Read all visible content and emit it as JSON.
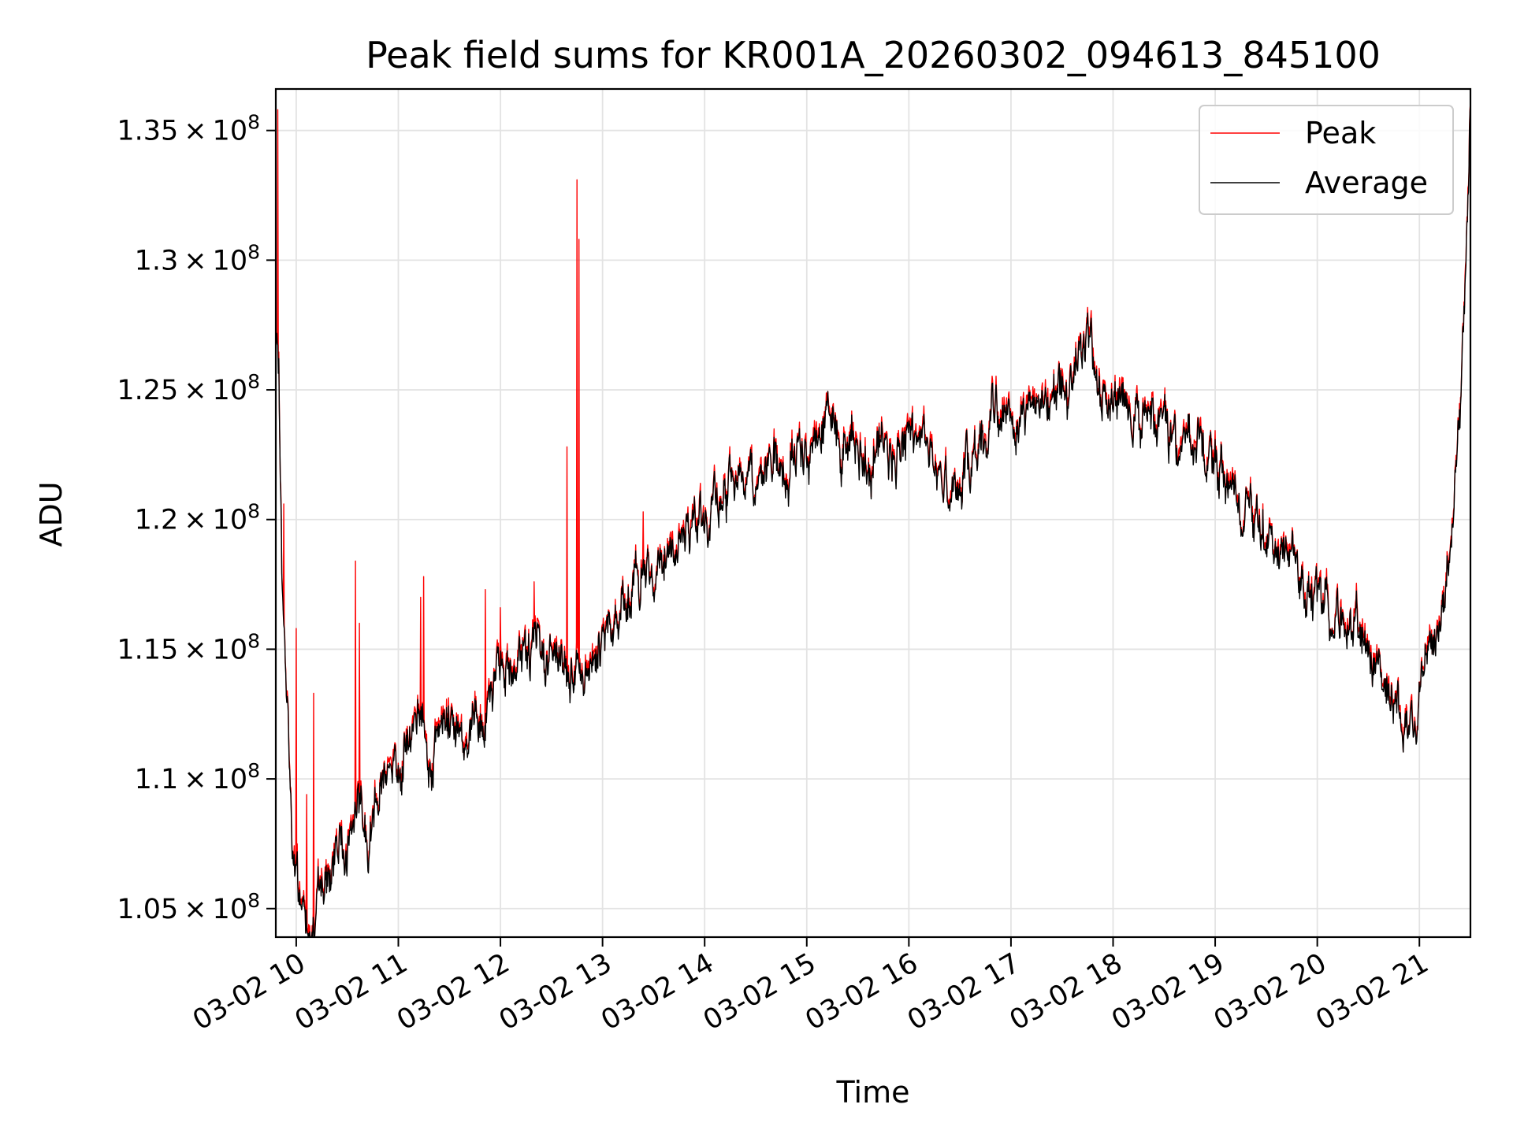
{
  "chart_data": {
    "type": "line",
    "title": "Peak field sums for KR001A_20260302_094613_845100",
    "xlabel": "Time",
    "ylabel": "ADU",
    "xlim_hours": [
      9.8,
      21.5
    ],
    "ylim": [
      103900000,
      136600000
    ],
    "grid": true,
    "legend_location": "upper right",
    "x_ticks": [
      {
        "hour": 10,
        "label": "03-02 10"
      },
      {
        "hour": 11,
        "label": "03-02 11"
      },
      {
        "hour": 12,
        "label": "03-02 12"
      },
      {
        "hour": 13,
        "label": "03-02 13"
      },
      {
        "hour": 14,
        "label": "03-02 14"
      },
      {
        "hour": 15,
        "label": "03-02 15"
      },
      {
        "hour": 16,
        "label": "03-02 16"
      },
      {
        "hour": 17,
        "label": "03-02 17"
      },
      {
        "hour": 18,
        "label": "03-02 18"
      },
      {
        "hour": 19,
        "label": "03-02 19"
      },
      {
        "hour": 20,
        "label": "03-02 20"
      },
      {
        "hour": 21,
        "label": "03-02 21"
      }
    ],
    "y_ticks": [
      {
        "value": 105000000,
        "mantissa": "1.05",
        "exponent": "8"
      },
      {
        "value": 110000000,
        "mantissa": "1.1",
        "exponent": "8"
      },
      {
        "value": 115000000,
        "mantissa": "1.15",
        "exponent": "8"
      },
      {
        "value": 120000000,
        "mantissa": "1.2",
        "exponent": "8"
      },
      {
        "value": 125000000,
        "mantissa": "1.25",
        "exponent": "8"
      },
      {
        "value": 130000000,
        "mantissa": "1.3",
        "exponent": "8"
      },
      {
        "value": 135000000,
        "mantissa": "1.35",
        "exponent": "8"
      }
    ],
    "series": [
      {
        "name": "Peak",
        "color": "#ff0000"
      },
      {
        "name": "Average",
        "color": "#000000"
      }
    ],
    "trend_points": [
      [
        9.8,
        126.5
      ],
      [
        9.83,
        124.8
      ],
      [
        9.86,
        117.5
      ],
      [
        9.9,
        113.0
      ],
      [
        9.93,
        111.0
      ],
      [
        9.96,
        107.5
      ],
      [
        10.0,
        106.0
      ],
      [
        10.05,
        104.9
      ],
      [
        10.1,
        105.3
      ],
      [
        10.15,
        104.2
      ],
      [
        10.25,
        105.6
      ],
      [
        10.35,
        106.7
      ],
      [
        10.45,
        107.6
      ],
      [
        10.55,
        108.3
      ],
      [
        10.6,
        109.8
      ],
      [
        10.7,
        107.4
      ],
      [
        10.8,
        109.6
      ],
      [
        10.9,
        110.8
      ],
      [
        11.0,
        110.6
      ],
      [
        11.1,
        111.8
      ],
      [
        11.2,
        112.4
      ],
      [
        11.3,
        110.5
      ],
      [
        11.4,
        111.6
      ],
      [
        11.5,
        112.3
      ],
      [
        11.6,
        112.5
      ],
      [
        11.7,
        112.0
      ],
      [
        11.8,
        111.2
      ],
      [
        11.9,
        113.0
      ],
      [
        12.0,
        114.3
      ],
      [
        12.2,
        114.6
      ],
      [
        12.4,
        115.0
      ],
      [
        12.6,
        114.5
      ],
      [
        12.8,
        114.0
      ],
      [
        13.0,
        115.5
      ],
      [
        13.2,
        116.8
      ],
      [
        13.4,
        117.6
      ],
      [
        13.6,
        118.5
      ],
      [
        13.8,
        119.3
      ],
      [
        14.0,
        120.0
      ],
      [
        14.2,
        120.8
      ],
      [
        14.4,
        121.5
      ],
      [
        14.6,
        121.4
      ],
      [
        14.8,
        122.2
      ],
      [
        15.0,
        122.8
      ],
      [
        15.2,
        123.8
      ],
      [
        15.4,
        123.1
      ],
      [
        15.6,
        122.6
      ],
      [
        15.8,
        122.4
      ],
      [
        16.0,
        123.3
      ],
      [
        16.2,
        122.3
      ],
      [
        16.4,
        121.3
      ],
      [
        16.6,
        122.0
      ],
      [
        16.8,
        123.8
      ],
      [
        17.0,
        124.6
      ],
      [
        17.2,
        124.3
      ],
      [
        17.4,
        124.9
      ],
      [
        17.6,
        125.4
      ],
      [
        17.75,
        127.5
      ],
      [
        17.85,
        125.3
      ],
      [
        18.0,
        124.6
      ],
      [
        18.2,
        123.9
      ],
      [
        18.4,
        123.8
      ],
      [
        18.6,
        123.1
      ],
      [
        18.8,
        122.8
      ],
      [
        19.0,
        121.8
      ],
      [
        19.2,
        120.8
      ],
      [
        19.4,
        119.8
      ],
      [
        19.6,
        118.6
      ],
      [
        19.8,
        118.0
      ],
      [
        20.0,
        117.3
      ],
      [
        20.2,
        116.5
      ],
      [
        20.4,
        115.6
      ],
      [
        20.6,
        114.2
      ],
      [
        20.75,
        113.2
      ],
      [
        20.85,
        112.3
      ],
      [
        20.95,
        113.0
      ],
      [
        21.05,
        113.8
      ],
      [
        21.15,
        114.2
      ],
      [
        21.2,
        115.8
      ],
      [
        21.3,
        118.5
      ],
      [
        21.4,
        124.5
      ],
      [
        21.45,
        129.5
      ],
      [
        21.5,
        135.5
      ]
    ],
    "peak_spikes": [
      [
        9.82,
        135.8
      ],
      [
        9.88,
        120.6
      ],
      [
        10.0,
        115.8
      ],
      [
        10.1,
        109.4
      ],
      [
        10.17,
        113.3
      ],
      [
        10.58,
        118.4
      ],
      [
        10.62,
        116.0
      ],
      [
        11.22,
        117.0
      ],
      [
        11.25,
        117.8
      ],
      [
        11.85,
        117.3
      ],
      [
        12.0,
        116.6
      ],
      [
        12.33,
        117.6
      ],
      [
        12.65,
        122.8
      ],
      [
        12.75,
        133.1
      ],
      [
        12.77,
        130.8
      ],
      [
        13.4,
        120.3
      ]
    ],
    "noise_amplitude": 0.7,
    "noise_seed": 7
  }
}
